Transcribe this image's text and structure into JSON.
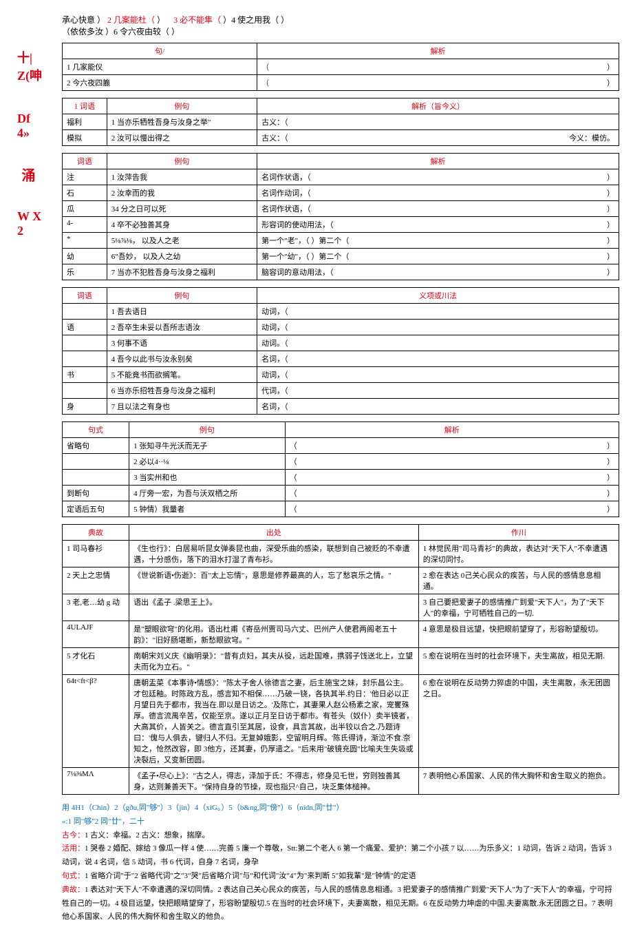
{
  "sidebar": {
    "s1": "十|\nZ(呻",
    "s2": "Df\n4»",
    "s3": "涌",
    "s4": "W\nX\n2"
  },
  "topRow": {
    "t1": "承心快意",
    "t1p": "）",
    "t2": "2 几案能杜（",
    "t2e": "）",
    "t3": "3 必不能隼（",
    "t3e": "）4 使之用我（",
    "t3f": "）",
    "line2a": "（依依多汝",
    "line2b": "）6 令六夜由较（",
    "line2c": "）"
  },
  "table1": {
    "h1": "句/",
    "h2": "解析",
    "r1c1": "1 几家能仪",
    "r2c1": "2 今六夜四簏"
  },
  "table2": {
    "hLabel": "1 词语",
    "hEx": "例句",
    "hParse": "解析（旨今义）",
    "r1a": "福利",
    "r1b": "1 当亦乐牺牲吾身与汝身之举\"",
    "r1c": "古义：（",
    "r2a": "模拟",
    "r2b": "2 汝可以慢出得之",
    "r2c": "古义：（",
    "r2c2": "今义：模仿。"
  },
  "table3": {
    "hLabel": "词语",
    "hEx": "例句",
    "hParse": "解析",
    "rows": [
      {
        "a": "注",
        "b": "1 汝萍告我",
        "c": "名词作状语，（"
      },
      {
        "a": "石",
        "b": "2 汝幸而的我",
        "c": "名词作动词，（"
      },
      {
        "a": "瓜",
        "b": "34 分之日可以死",
        "c": "名词作状语，（"
      },
      {
        "a": "4-",
        "b": "4 卒不必独善其身",
        "c": "形容词的使动用法，（"
      },
      {
        "a": "*",
        "b": "5⅛⅞⅛，     以及人之老",
        "c": "第一个\"老\"，（                    ）第二个（"
      },
      {
        "a": "幼",
        "b": "6\"吾妙，    以及人之幼",
        "c": "第一个\"幼\"，（              ）第二个（"
      },
      {
        "a": "乐",
        "b": "7 当亦不犯胜吾身与汝身之福利",
        "c": "脑容词的意动用法，（"
      }
    ]
  },
  "table4": {
    "hLabel": "词语",
    "hEx": "例句",
    "hParse": "义项或川法",
    "rows": [
      {
        "a": "",
        "b": "1 吾去语日",
        "c": "动词，（"
      },
      {
        "a": "语",
        "b": "2 吾卒生未妥以吾所志语汝",
        "c": "动词，（"
      },
      {
        "a": "",
        "b": "3 何事不语",
        "c": "动词。（"
      },
      {
        "a": "",
        "b": "4 吾今以此书与汝永别矣",
        "c": "名词，（"
      },
      {
        "a": "书",
        "b": "5 不能竟书而欲搁笔。",
        "c": "动词，（"
      },
      {
        "a": "",
        "b": "6 当亦乐招牲吾身与汝身之福利",
        "c": "代词，（"
      },
      {
        "a": "身",
        "b": "7 且以法之有身也",
        "c": "名词，（"
      }
    ]
  },
  "table5": {
    "h1": "句式",
    "h2": "例句",
    "h3": "解析",
    "rows": [
      {
        "a": "省略句",
        "b": "1 张知寻牛光沃而无子",
        "c": "（"
      },
      {
        "a": "",
        "b": "2 必以4··⅛",
        "c": "（"
      },
      {
        "a": "",
        "b": "3 当实州和也",
        "c": "（"
      },
      {
        "a": "到断句",
        "b": "4 厅旁一宏，为吾与沃双栖之所",
        "c": "（"
      },
      {
        "a": "定语后五句",
        "b": "5 钟情）我量者",
        "c": "（"
      }
    ]
  },
  "table6": {
    "h1": "典故",
    "h2": "出处",
    "h3": "作川",
    "rows": [
      {
        "a": "1 司马春衫",
        "b": "《生也行》：白居易听昆女弹奏昆也曲，深受乐曲的感染，联想到自己被贬的不幸遭遇，十分感伤，落下的泪水打湿了青布衫。",
        "c": "1 林觉民用\"司马青衫\"的典故，表达对\"天下人\"不幸遭遇的深切同忖。"
      },
      {
        "a": "2 天上之忠情",
        "b": "《世说新语•伤逝》：百\"太上忘情\"，意思是修养最高的人，忘了愁哀乐之情。\"",
        "c": "2 愈在表达 0己关心民众的疾苦，与人民的感情息息相通。"
      },
      {
        "a": "3 老,老…幼 g 动",
        "b": "语出《孟子 .梁思王上》。",
        "c": "3 自己要把爱妻子的感情推广到爱\"天下人\"，为了\"天下人\"的幸福，宁可牺牲自己的一切."
      },
      {
        "a": "4ULAJF",
        "b": "是\"塑眼欲穹\"的化用。语出杜甫《寄岳州贾司马六丈、巴州产人使君两阁老五十韵》：\"旧好肠堪断，新愁眼欲穹。\"",
        "c": "4 意思是极目远望，快把眼前望穿了，形容盼望殷切。"
      },
      {
        "a": "5 才化石",
        "b": "南朝宋刘义庆《幽明录》：\"昔有贞妇，其夫从役，远赴国难，携弱子饯送北上，立望夫而化为立石。\"",
        "c": "5 愈在说明在当时的社会环境下，夫生离故，相见无期."
      },
      {
        "a": "64t<ft<β?",
        "b": "唐朝盂菜《本事诗•情感》：\"陈太子舍人徐德言之妻，后主施宝之妹，封乐昌公主。才包廷釉。时陈政方乱，感言知不相保……乃破一铙，各执其半.约日：'他日必以正月望日先于都市，我当在.即以是日访之。'及陈亡，其妻果人赵公杨素之家，宠矍殊厚。德言流禺辛苦，仅能至京。遂以正月至日访于都市。有苍头（奴仆）卖半镜者，大高其价，人皆关之。德言直引至其居，设食，具言其故，出半铰以合之.乃题诗曰：'傀与人俱去，键归人不归。无复婥娥影，空留明月辉。'陈氏得诗，渐泣不食.奈知之，怆然改容，即 3他方，还其妻，仍厚遣之。\"后来用\"破镜充圆\"比喻夫生失圾或决裂后，又变新团圆。",
        "c": "6 愈在说明在反动势力猝虐的中国，夫生离散，永无团圆之日。"
      },
      {
        "a": "7⅛⅜MΛ",
        "b": "《孟子•尽心上》：\"古之人，得志，泽加于氏：不得志，修身见乇世，穷则独善其身，达则兼善天下。\"保持自身的节操，现也指只^自己，块乏集体槌神。",
        "c": "7 表明他心系国家、人民的伟大胸怀和舍生取义的抱负。"
      }
    ]
  },
  "notes": {
    "n1": "用 4H1（Chin）2（gðu,同\"够\"）3（jin）4（xiG。）5（b&ng,同\"傍\"）6（nidn,同\"廿\"）",
    "n2": "«:1 同\"够\"2 同\"廿\"，二十",
    "n3": "古今：1 古义：幸福。2 古义：想象，揣摩。",
    "n4": "活用：1 哭卷 2 婚配、嫁给 3 像瓜一样 4 使……完善 5 廉一个尊敬，Stt:第二个老人 6 第一个痛爱、爱护：第二个小孩 7 以……为乐多义：1 动词，告诉 2 动词，告诉 3 动词，说 4 名词，信 5 动词，书 6 代词，自身 7 名词，身孕",
    "n5": "句式：1 省略介词\"于\"2 省略代词\"之\"3\"哭\"后省略介词\"与\"和代词\"汝\"4\"为\"来判断 5\"如我輩\"是\"钟情\"的定语",
    "n6": "典故：1 表达对\"天下人\"不幸遭遇的深切同情。2 表达自己关心民众的疾苦，与人民的感情息息相通。3 把爱妻子的感情推广到爱\"天下人\"为了\"天下人\"的幸福，宁可捋牲自己的一切。4 极目远望，快把眼睛望穿了，形容盼望殷切.5 在当时的社会环境下，夫妻离散，相见无期。6 在反动势力坤虐的中国.夫妻离散.永无团圆之日。7 表明他心系国家、人民的伟大胸怀和舍生取义的他负。"
  }
}
